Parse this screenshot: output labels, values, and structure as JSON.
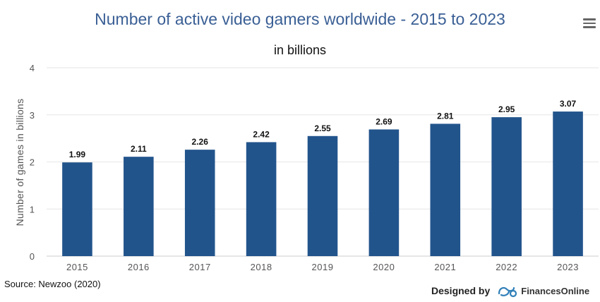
{
  "header": {
    "title": "Number of active video gamers worldwide - 2015 to 2023",
    "subtitle": "in billions",
    "menu_icon": "hamburger-menu-icon"
  },
  "chart_data": {
    "type": "bar",
    "title": "Number of active video gamers worldwide - 2015 to 2023",
    "subtitle": "in billions",
    "xlabel": "",
    "ylabel": "Number of games in billions",
    "categories": [
      "2015",
      "2016",
      "2017",
      "2018",
      "2019",
      "2020",
      "2021",
      "2022",
      "2023"
    ],
    "values": [
      1.99,
      2.11,
      2.26,
      2.42,
      2.55,
      2.69,
      2.81,
      2.95,
      3.07
    ],
    "value_labels": [
      "1.99",
      "2.11",
      "2.26",
      "2.42",
      "2.55",
      "2.69",
      "2.81",
      "2.95",
      "3.07"
    ],
    "ylim": [
      0,
      4
    ],
    "yticks": [
      "0",
      "1",
      "2",
      "3",
      "4"
    ],
    "grid": true,
    "bar_color": "#22548c",
    "grid_color": "#e6e6e6"
  },
  "footer": {
    "source": "Source: Newzoo (2020)",
    "designed_by": "Designed by",
    "brand_name": "FinancesOnline",
    "brand_icon": "financesonline-logo-icon"
  }
}
